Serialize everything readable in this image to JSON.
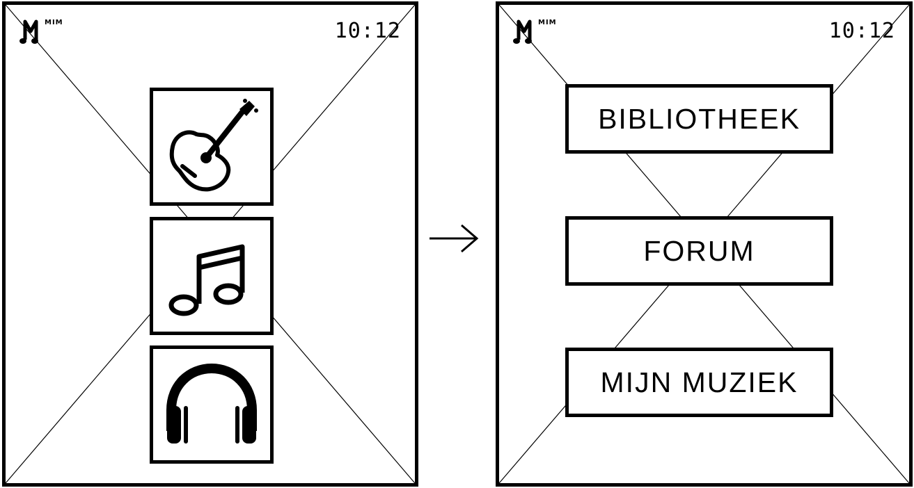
{
  "screens": {
    "left": {
      "logo_text": "MIM",
      "time": "10:12",
      "tiles": [
        {
          "icon": "guitar-icon"
        },
        {
          "icon": "music-note-icon"
        },
        {
          "icon": "headphones-icon"
        }
      ]
    },
    "right": {
      "logo_text": "MIM",
      "time": "10:12",
      "menu": [
        {
          "label": "BIBLIOTHEEK"
        },
        {
          "label": "FORUM"
        },
        {
          "label": "MIJN MUZIEK"
        }
      ]
    }
  },
  "transition": {
    "icon": "arrow-right-icon"
  },
  "colors": {
    "stroke": "#000000",
    "background": "#ffffff"
  }
}
